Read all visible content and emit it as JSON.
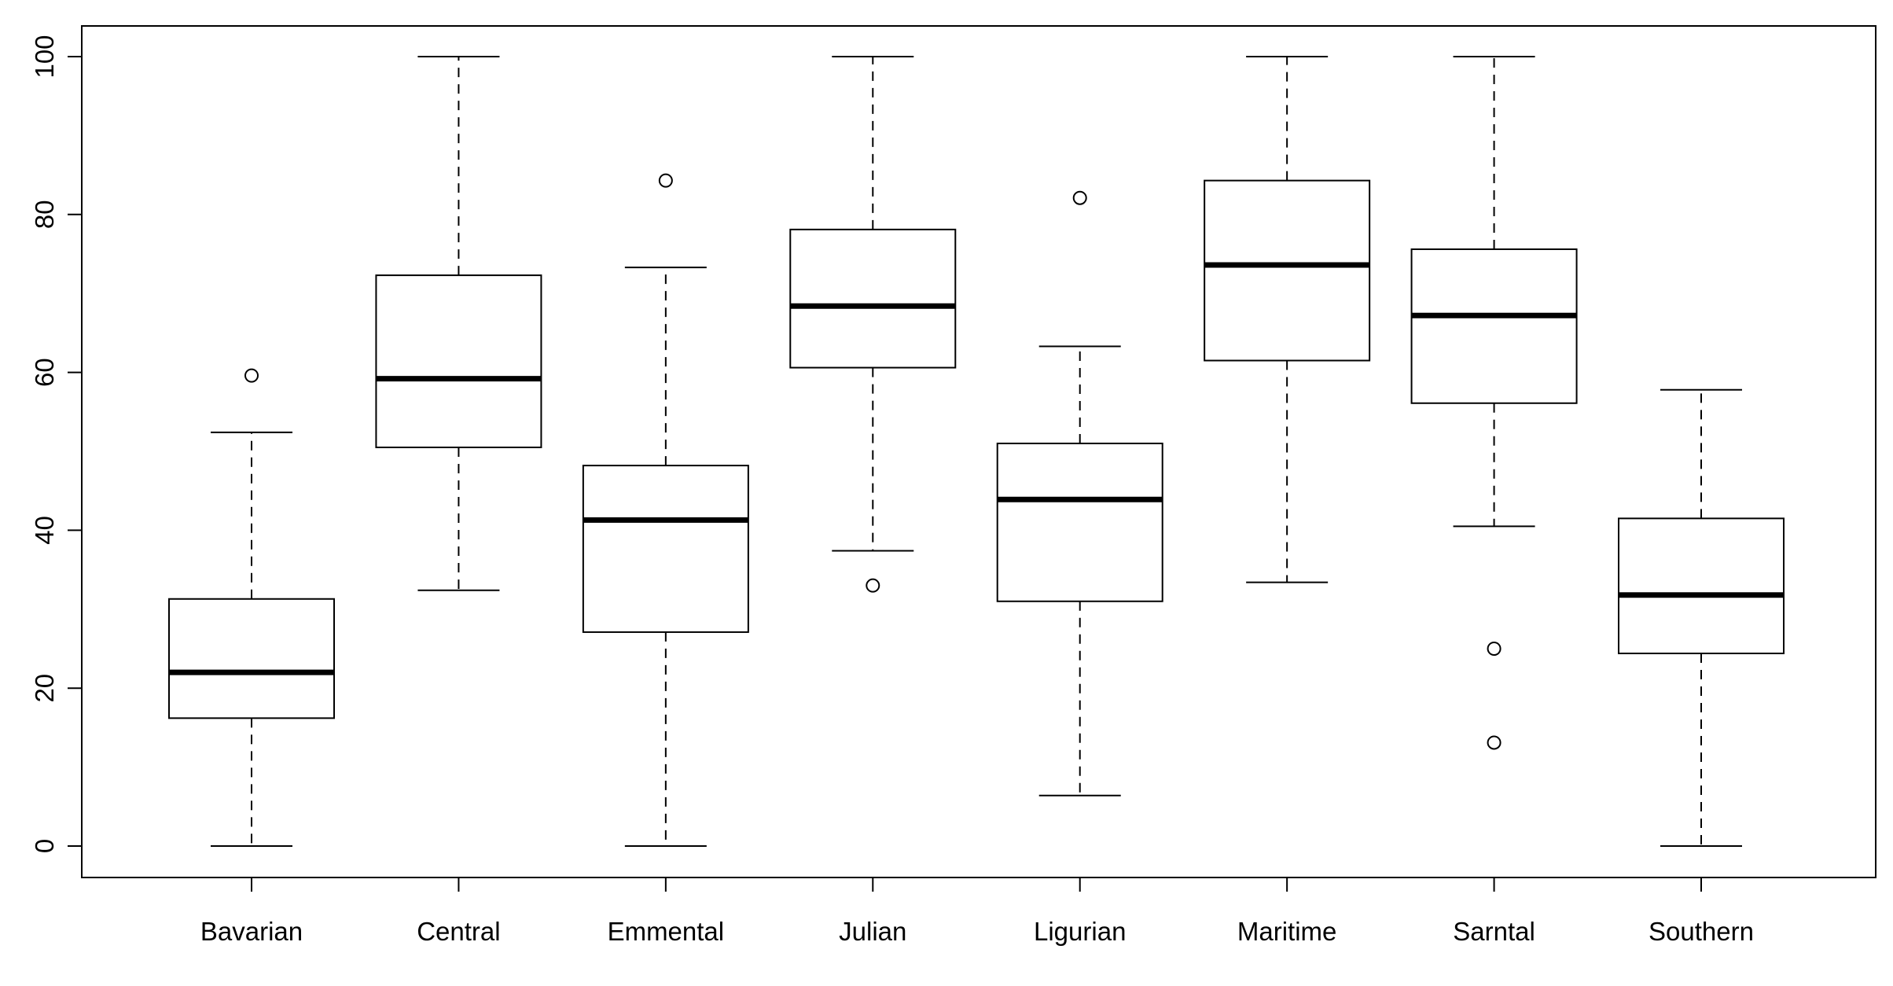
{
  "chart_data": {
    "type": "boxplot",
    "title": "",
    "xlabel": "",
    "ylabel": "",
    "ylim": [
      0,
      100
    ],
    "yticks": [
      0,
      20,
      40,
      60,
      80,
      100
    ],
    "categories": [
      "Bavarian",
      "Central",
      "Emmental",
      "Julian",
      "Ligurian",
      "Maritime",
      "Sarntal",
      "Southern"
    ],
    "boxes": [
      {
        "name": "Bavarian",
        "whisker_low": 0,
        "q1": 16.2,
        "median": 22.0,
        "q3": 31.3,
        "whisker_high": 52.4,
        "outliers": [
          59.6
        ]
      },
      {
        "name": "Central",
        "whisker_low": 32.4,
        "q1": 50.5,
        "median": 59.2,
        "q3": 72.3,
        "whisker_high": 100,
        "outliers": []
      },
      {
        "name": "Emmental",
        "whisker_low": 0,
        "q1": 27.1,
        "median": 41.3,
        "q3": 48.2,
        "whisker_high": 73.3,
        "outliers": [
          84.3
        ]
      },
      {
        "name": "Julian",
        "whisker_low": 37.4,
        "q1": 60.6,
        "median": 68.4,
        "q3": 78.1,
        "whisker_high": 100,
        "outliers": [
          33.0
        ]
      },
      {
        "name": "Ligurian",
        "whisker_low": 6.4,
        "q1": 31.0,
        "median": 43.9,
        "q3": 51.0,
        "whisker_high": 63.3,
        "outliers": [
          82.1
        ]
      },
      {
        "name": "Maritime",
        "whisker_low": 33.4,
        "q1": 61.5,
        "median": 73.6,
        "q3": 84.3,
        "whisker_high": 100,
        "outliers": []
      },
      {
        "name": "Sarntal",
        "whisker_low": 40.5,
        "q1": 56.1,
        "median": 67.2,
        "q3": 75.6,
        "whisker_high": 100,
        "outliers": [
          25.0,
          13.1
        ]
      },
      {
        "name": "Southern",
        "whisker_low": 0,
        "q1": 24.4,
        "median": 31.8,
        "q3": 41.5,
        "whisker_high": 57.8,
        "outliers": []
      }
    ]
  }
}
